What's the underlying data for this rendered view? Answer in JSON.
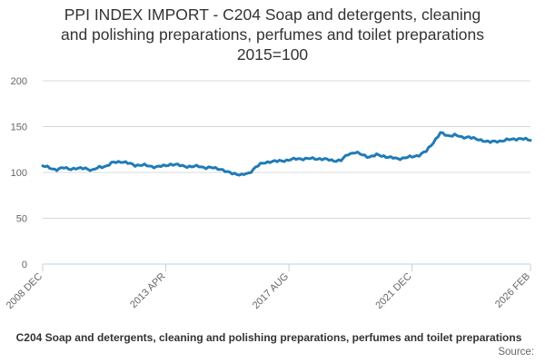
{
  "title_lines": [
    "PPI INDEX IMPORT - C204 Soap and detergents, cleaning",
    "and polishing preparations, perfumes and toilet preparations",
    "2015=100"
  ],
  "legend_label": "C204 Soap and detergents, cleaning and polishing preparations, perfumes and toilet preparations",
  "source_label": "Source:",
  "colors": {
    "series": "#1f7bb7",
    "grid": "#d8d8d8",
    "axis": "#c0d0e0",
    "text": "#666666"
  },
  "chart_data": {
    "type": "line",
    "title": "PPI INDEX IMPORT - C204 Soap and detergents, cleaning and polishing preparations, perfumes and toilet preparations 2015=100",
    "xlabel": "",
    "ylabel": "",
    "ylim": [
      0,
      200
    ],
    "yticks": [
      0,
      50,
      100,
      150,
      200
    ],
    "xticks": [
      "2008 DEC",
      "2013 APR",
      "2017 AUG",
      "2021 DEC",
      "2026 FEB"
    ],
    "grid": true,
    "legend": "bottom",
    "series": [
      {
        "name": "C204 Soap and detergents, cleaning and polishing preparations, perfumes and toilet preparations",
        "points": [
          [
            "2008-12",
            107
          ],
          [
            "2009-03",
            105
          ],
          [
            "2009-06",
            103
          ],
          [
            "2009-09",
            105
          ],
          [
            "2009-12",
            104
          ],
          [
            "2010-03",
            104
          ],
          [
            "2010-06",
            105
          ],
          [
            "2010-09",
            102
          ],
          [
            "2010-12",
            106
          ],
          [
            "2011-03",
            107
          ],
          [
            "2011-06",
            111
          ],
          [
            "2011-09",
            112
          ],
          [
            "2011-12",
            110
          ],
          [
            "2012-03",
            108
          ],
          [
            "2012-06",
            108
          ],
          [
            "2012-09",
            107
          ],
          [
            "2012-12",
            106
          ],
          [
            "2013-03",
            107
          ],
          [
            "2013-06",
            109
          ],
          [
            "2013-09",
            108
          ],
          [
            "2013-12",
            107
          ],
          [
            "2014-03",
            106
          ],
          [
            "2014-06",
            107
          ],
          [
            "2014-09",
            105
          ],
          [
            "2014-12",
            105
          ],
          [
            "2015-03",
            104
          ],
          [
            "2015-06",
            100
          ],
          [
            "2015-09",
            99
          ],
          [
            "2015-12",
            97
          ],
          [
            "2016-03",
            99
          ],
          [
            "2016-06",
            106
          ],
          [
            "2016-09",
            110
          ],
          [
            "2016-12",
            112
          ],
          [
            "2017-03",
            112
          ],
          [
            "2017-06",
            113
          ],
          [
            "2017-09",
            114
          ],
          [
            "2017-12",
            115
          ],
          [
            "2018-03",
            115
          ],
          [
            "2018-06",
            115
          ],
          [
            "2018-09",
            115
          ],
          [
            "2018-12",
            114
          ],
          [
            "2019-03",
            113
          ],
          [
            "2019-06",
            113
          ],
          [
            "2019-09",
            120
          ],
          [
            "2019-12",
            122
          ],
          [
            "2020-03",
            119
          ],
          [
            "2020-06",
            117
          ],
          [
            "2020-09",
            119
          ],
          [
            "2020-12",
            118
          ],
          [
            "2021-03",
            116
          ],
          [
            "2021-06",
            115
          ],
          [
            "2021-09",
            116
          ],
          [
            "2021-12",
            117
          ],
          [
            "2022-03",
            119
          ],
          [
            "2022-06",
            123
          ],
          [
            "2022-09",
            133
          ],
          [
            "2022-12",
            143
          ],
          [
            "2023-03",
            140
          ],
          [
            "2023-06",
            141
          ],
          [
            "2023-09",
            138
          ],
          [
            "2023-12",
            139
          ],
          [
            "2024-03",
            136
          ],
          [
            "2024-06",
            135
          ],
          [
            "2024-09",
            133
          ],
          [
            "2024-12",
            134
          ],
          [
            "2025-03",
            135
          ],
          [
            "2025-06",
            136
          ],
          [
            "2025-09",
            137
          ],
          [
            "2025-12",
            136
          ],
          [
            "2026-02",
            135
          ]
        ]
      }
    ]
  }
}
